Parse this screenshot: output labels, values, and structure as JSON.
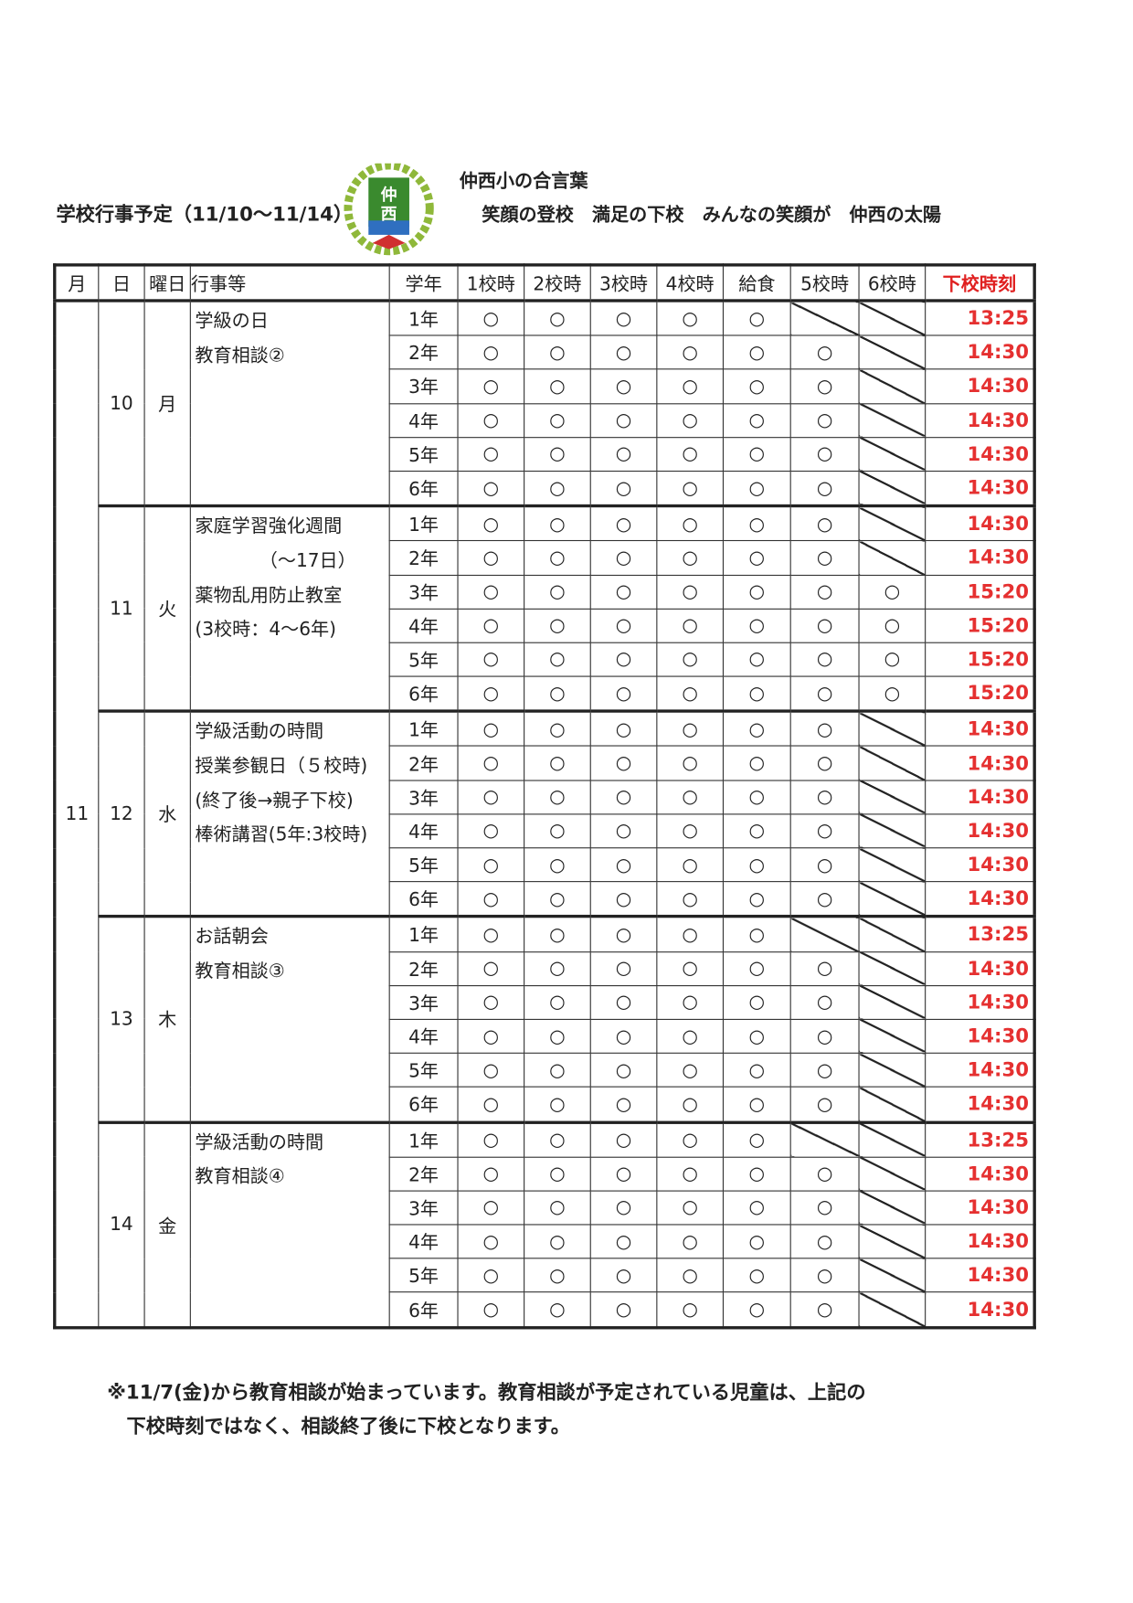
{
  "header": {
    "title": "学校行事予定（11/10～11/14）",
    "logo_text": "仲西",
    "motto_heading": "仲西小の合言葉",
    "motto": "笑顔の登校　満足の下校　みんなの笑顔が　仲西の太陽"
  },
  "table": {
    "columns": [
      "月",
      "日",
      "曜日",
      "行事等",
      "学年",
      "1校時",
      "2校時",
      "3校時",
      "4校時",
      "給食",
      "5校時",
      "6校時",
      "下校時刻"
    ],
    "month": "11",
    "circle": "○",
    "days": [
      {
        "day": "10",
        "weekday": "月",
        "events": [
          "学級の日",
          "教育相談②"
        ],
        "rows": [
          [
            "1年",
            "slash",
            "slash",
            "13:25"
          ],
          [
            "2年",
            "○",
            "slash",
            "14:30"
          ],
          [
            "3年",
            "○",
            "slash",
            "14:30"
          ],
          [
            "4年",
            "○",
            "slash",
            "14:30"
          ],
          [
            "5年",
            "○",
            "slash",
            "14:30"
          ],
          [
            "6年",
            "○",
            "slash",
            "14:30"
          ]
        ]
      },
      {
        "day": "11",
        "weekday": "火",
        "events": [
          "家庭学習強化週間",
          "　　　　（～17日）",
          "薬物乱用防止教室",
          "(3校時：4～6年)"
        ],
        "rows": [
          [
            "1年",
            "○",
            "slash",
            "14:30"
          ],
          [
            "2年",
            "○",
            "slash",
            "14:30"
          ],
          [
            "3年",
            "○",
            "○",
            "15:20"
          ],
          [
            "4年",
            "○",
            "○",
            "15:20"
          ],
          [
            "5年",
            "○",
            "○",
            "15:20"
          ],
          [
            "6年",
            "○",
            "○",
            "15:20"
          ]
        ]
      },
      {
        "day": "12",
        "weekday": "水",
        "events": [
          "学級活動の時間",
          "授業参観日（５校時)",
          "(終了後→親子下校)",
          "棒術講習(5年:3校時)"
        ],
        "rows": [
          [
            "1年",
            "○",
            "slash",
            "14:30"
          ],
          [
            "2年",
            "○",
            "slash",
            "14:30"
          ],
          [
            "3年",
            "○",
            "slash",
            "14:30"
          ],
          [
            "4年",
            "○",
            "slash",
            "14:30"
          ],
          [
            "5年",
            "○",
            "slash",
            "14:30"
          ],
          [
            "6年",
            "○",
            "slash",
            "14:30"
          ]
        ]
      },
      {
        "day": "13",
        "weekday": "木",
        "events": [
          "お話朝会",
          "教育相談③"
        ],
        "rows": [
          [
            "1年",
            "slash",
            "slash",
            "13:25"
          ],
          [
            "2年",
            "○",
            "slash",
            "14:30"
          ],
          [
            "3年",
            "○",
            "slash",
            "14:30"
          ],
          [
            "4年",
            "○",
            "slash",
            "14:30"
          ],
          [
            "5年",
            "○",
            "slash",
            "14:30"
          ],
          [
            "6年",
            "○",
            "slash",
            "14:30"
          ]
        ]
      },
      {
        "day": "14",
        "weekday": "金",
        "events": [
          "学級活動の時間",
          "教育相談④"
        ],
        "rows": [
          [
            "1年",
            "slash",
            "slash",
            "13:25"
          ],
          [
            "2年",
            "○",
            "slash",
            "14:30"
          ],
          [
            "3年",
            "○",
            "slash",
            "14:30"
          ],
          [
            "4年",
            "○",
            "slash",
            "14:30"
          ],
          [
            "5年",
            "○",
            "slash",
            "14:30"
          ],
          [
            "6年",
            "○",
            "slash",
            "14:30"
          ]
        ]
      }
    ]
  },
  "footer": {
    "note_line1": "※11/7(金)から教育相談が始まっています。教育相談が予定されている児童は、上記の",
    "note_line2": "　下校時刻ではなく、相談終了後に下校となります。"
  },
  "colors": {
    "time": "#e53030",
    "logo_green": "#3a8a2e"
  }
}
